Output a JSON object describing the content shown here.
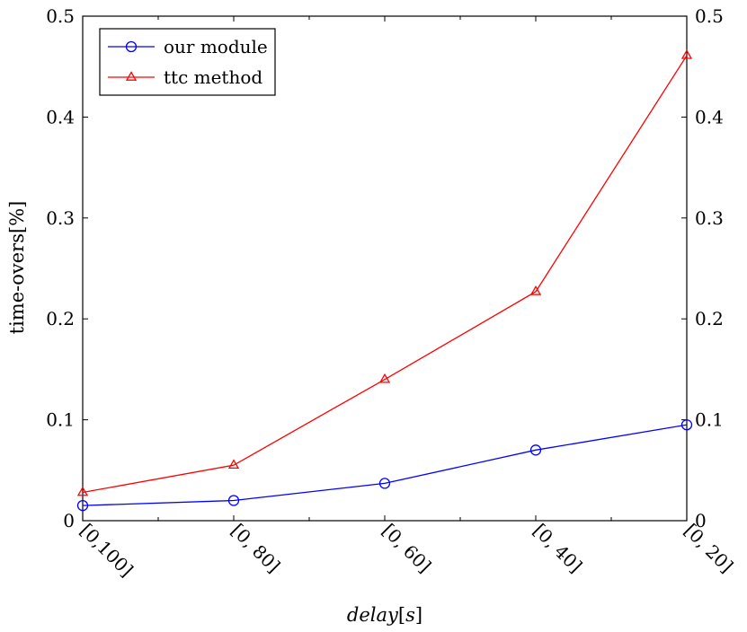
{
  "chart_data": {
    "type": "line",
    "categories": [
      "[0,100]",
      "[0, 80]",
      "[0, 60]",
      "[0, 40]",
      "[0, 20]"
    ],
    "series": [
      {
        "name": "our module",
        "values": [
          0.015,
          0.02,
          0.037,
          0.07,
          0.095
        ],
        "color": "#0000ff",
        "marker": "circle"
      },
      {
        "name": "ttc method",
        "values": [
          0.028,
          0.055,
          0.14,
          0.227,
          0.461
        ],
        "color": "#ff0000",
        "marker": "triangle"
      }
    ],
    "title": "",
    "xlabel": "delay[s]",
    "xlabel_italic_part": "delay",
    "xlabel_upright_part": "[",
    "xlabel_italic_unit": "s",
    "xlabel_upright_end": "]",
    "ylabel": "time-overs[%]",
    "ylim": [
      0,
      0.5
    ],
    "yticks": [
      0,
      0.1,
      0.2,
      0.3,
      0.4,
      0.5
    ],
    "ytick_labels": [
      "0",
      "0.1",
      "0.2",
      "0.3",
      "0.4",
      "0.5"
    ],
    "right_axis_mirrored": true,
    "grid": false,
    "legend_position": "top-left"
  }
}
